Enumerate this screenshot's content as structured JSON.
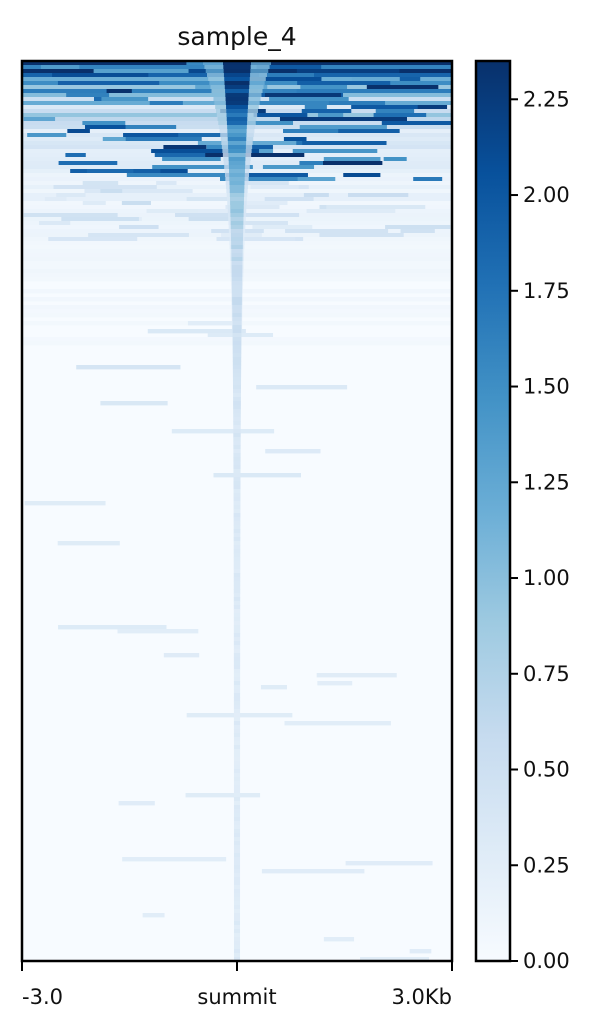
{
  "chart_data": {
    "type": "heatmap",
    "title": "sample_4",
    "x_tick_labels": [
      "-3.0",
      "summit",
      "3.0Kb"
    ],
    "x_range_kb": [
      -3.0,
      3.0
    ],
    "color_scale": {
      "name": "Blues",
      "min": 0.0,
      "max": 2.35,
      "colors": [
        "#f7fbff",
        "#deebf7",
        "#c6dbef",
        "#9ecae1",
        "#6baed6",
        "#4292c6",
        "#2171b5",
        "#08519c",
        "#08306b"
      ]
    },
    "colorbar_ticks": [
      {
        "value": 0.0,
        "label": "0.00"
      },
      {
        "value": 0.25,
        "label": "0.25"
      },
      {
        "value": 0.5,
        "label": "0.50"
      },
      {
        "value": 0.75,
        "label": "0.75"
      },
      {
        "value": 1.0,
        "label": "1.00"
      },
      {
        "value": 1.25,
        "label": "1.25"
      },
      {
        "value": 1.5,
        "label": "1.50"
      },
      {
        "value": 1.75,
        "label": "1.75"
      },
      {
        "value": 2.0,
        "label": "2.00"
      },
      {
        "value": 2.25,
        "label": "2.25"
      }
    ],
    "description": "Signal rows sorted by decreasing intensity; strongest signal concentrated around the summit and in the top rows"
  }
}
